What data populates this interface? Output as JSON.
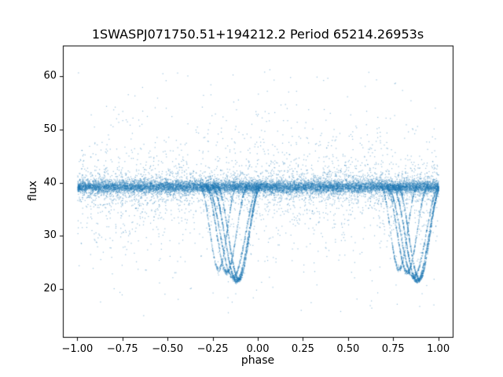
{
  "chart_data": {
    "type": "scatter",
    "title": "1SWASPJ071750.51+194212.2 Period 65214.26953s",
    "xlabel": "phase",
    "ylabel": "flux",
    "xlim": [
      -1.08,
      1.08
    ],
    "ylim": [
      11.0,
      65.8
    ],
    "grid": false,
    "legend": "none",
    "marker_color": "#1f77b4",
    "marker_alpha": 0.45,
    "marker_size_px": 1.2,
    "xticks": [
      -1.0,
      -0.75,
      -0.5,
      -0.25,
      0.0,
      0.25,
      0.5,
      0.75,
      1.0
    ],
    "xtick_labels": [
      "−1.00",
      "−0.75",
      "−0.50",
      "−0.25",
      "0.00",
      "0.25",
      "0.50",
      "0.75",
      "1.00"
    ],
    "yticks": [
      20,
      30,
      40,
      50,
      60
    ],
    "ytick_labels": [
      "20",
      "30",
      "40",
      "50",
      "60"
    ],
    "baseline_flux": 39.3,
    "eclipse_min_flux": 21.6,
    "scatter_model": {
      "seed": 42,
      "phase_range": [
        -1.0,
        1.0
      ],
      "baseline": {
        "n": 9000,
        "flux": 39.3,
        "sigma": 0.55
      },
      "baseline_wide": {
        "n": 3000,
        "sigma": 1.6
      },
      "halo": {
        "n": 1700,
        "sigma": 6.5,
        "min": 14.5,
        "max": 62.5
      },
      "outliers": {
        "n": 140,
        "min": 15.0,
        "max": 62.0
      },
      "eclipses": {
        "centers": [
          -1.12,
          -0.12,
          0.88
        ],
        "tracks": [
          {
            "dc": 0.0,
            "depth": 21.6,
            "width": 0.135,
            "n": 700
          },
          {
            "dc": 0.013,
            "depth": 21.9,
            "width": 0.12,
            "n": 600
          },
          {
            "dc": -0.02,
            "depth": 22.3,
            "width": 0.145,
            "n": 550
          },
          {
            "dc": -0.055,
            "depth": 23.2,
            "width": 0.115,
            "n": 450
          },
          {
            "dc": -0.1,
            "depth": 23.8,
            "width": 0.1,
            "n": 350
          }
        ],
        "track_noise_sigma": 0.25
      }
    }
  }
}
